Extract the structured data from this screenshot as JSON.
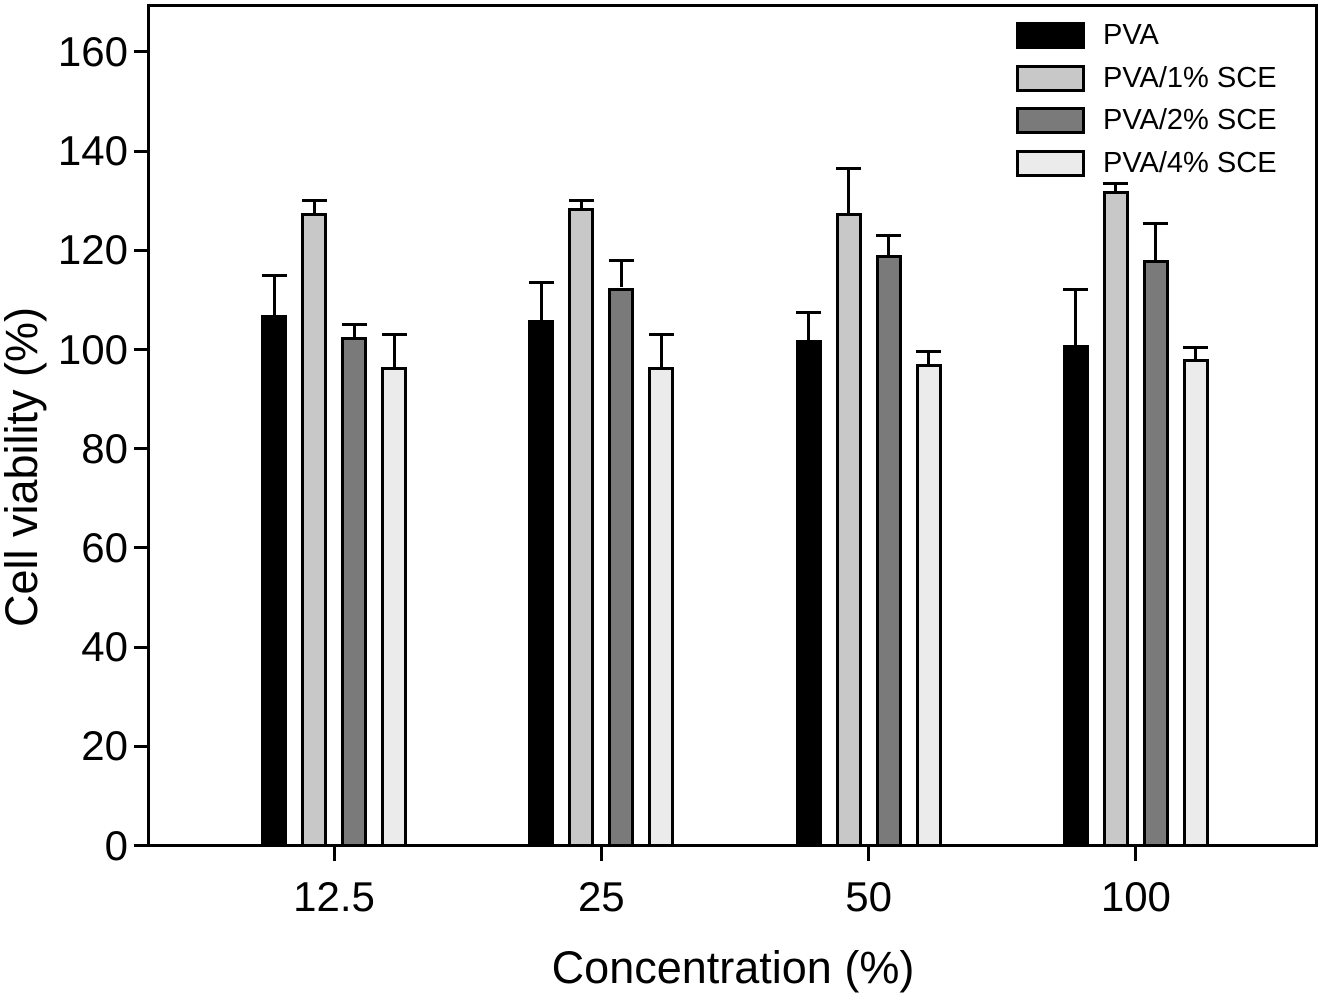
{
  "figure": {
    "x_axis_title": "Concentration (%)",
    "y_axis_title": "Cell viability (%)"
  },
  "chart_data": {
    "type": "bar",
    "title": "",
    "xlabel": "Concentration (%)",
    "ylabel": "Cell viability (%)",
    "categories": [
      "12.5",
      "25",
      "50",
      "100"
    ],
    "series": [
      {
        "name": "PVA",
        "color": "#000000",
        "values": [
          107,
          106,
          102,
          101
        ],
        "errors": [
          8,
          7.5,
          5.5,
          11
        ]
      },
      {
        "name": "PVA/1% SCE",
        "color": "#c8c8c8",
        "values": [
          127.5,
          128.5,
          127.5,
          132
        ],
        "errors": [
          2.5,
          1.5,
          9,
          1.5
        ]
      },
      {
        "name": "PVA/2% SCE",
        "color": "#7a7a7a",
        "values": [
          102.5,
          112.5,
          119,
          118
        ],
        "errors": [
          2.5,
          5.5,
          4,
          7.5
        ]
      },
      {
        "name": "PVA/4% SCE",
        "color": "#ebebeb",
        "values": [
          96.5,
          96.5,
          97,
          98
        ],
        "errors": [
          6.5,
          6.5,
          2.5,
          2.5
        ]
      }
    ],
    "yticks": [
      0,
      20,
      40,
      60,
      80,
      100,
      120,
      140,
      160
    ],
    "ylim": [
      0,
      170
    ],
    "error_bars": "upper-only",
    "legend_position": "top-right",
    "grid": false,
    "bar_outline_color": "#000000",
    "background_color": "#ffffff"
  }
}
